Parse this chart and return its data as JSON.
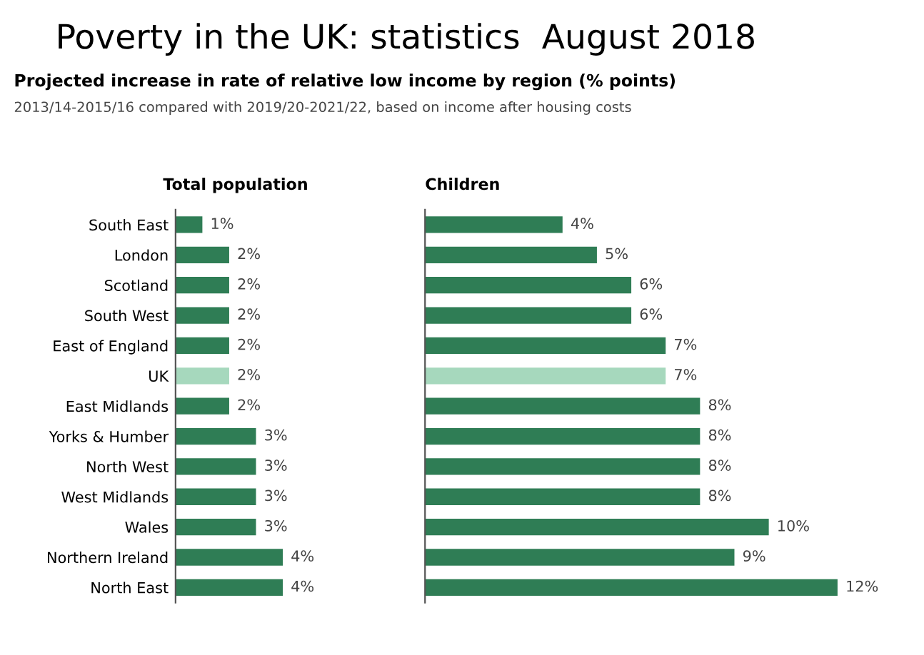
{
  "chart_data": [
    {
      "type": "bar",
      "orientation": "horizontal",
      "title": "Total population",
      "annotations": [
        "Poverty in the UK: statistics  August 2018",
        "Projected increase in rate of relative low income by region (% points)",
        "2013/14-2015/16 compared with 2019/20-2021/22, based on income after housing costs"
      ],
      "categories": [
        "South East",
        "London",
        "Scotland",
        "South West",
        "East of England",
        "UK",
        "East Midlands",
        "Yorks & Humber",
        "North West",
        "West Midlands",
        "Wales",
        "Northern Ireland",
        "North East"
      ],
      "values": [
        1,
        2,
        2,
        2,
        2,
        2,
        2,
        3,
        3,
        3,
        3,
        4,
        4
      ],
      "colors": [
        "#2f7d55",
        "#2f7d55",
        "#2f7d55",
        "#2f7d55",
        "#2f7d55",
        "#a6d8bd",
        "#2f7d55",
        "#2f7d55",
        "#2f7d55",
        "#2f7d55",
        "#2f7d55",
        "#2f7d55",
        "#2f7d55"
      ],
      "value_labels": [
        "1%",
        "2%",
        "2%",
        "2%",
        "2%",
        "2%",
        "2%",
        "3%",
        "3%",
        "3%",
        "3%",
        "4%",
        "4%"
      ],
      "tick_labels": "y",
      "grid": false,
      "legend": false
    },
    {
      "type": "bar",
      "orientation": "horizontal",
      "title": "Children",
      "categories": [
        null,
        null,
        null,
        null,
        null,
        null,
        null,
        null,
        null,
        null,
        null,
        null,
        null
      ],
      "values": [
        4,
        5,
        6,
        6,
        7,
        7,
        8,
        8,
        8,
        8,
        10,
        9,
        12
      ],
      "colors": [
        "#2f7d55",
        "#2f7d55",
        "#2f7d55",
        "#2f7d55",
        "#2f7d55",
        "#a6d8bd",
        "#2f7d55",
        "#2f7d55",
        "#2f7d55",
        "#2f7d55",
        "#2f7d55",
        "#2f7d55",
        "#2f7d55"
      ],
      "value_labels": [
        "4%",
        "5%",
        "6%",
        "6%",
        "7%",
        "7%",
        "8%",
        "8%",
        "8%",
        "8%",
        "10%",
        "9%",
        "12%"
      ],
      "tick_labels": false,
      "grid": false,
      "legend": false
    }
  ]
}
